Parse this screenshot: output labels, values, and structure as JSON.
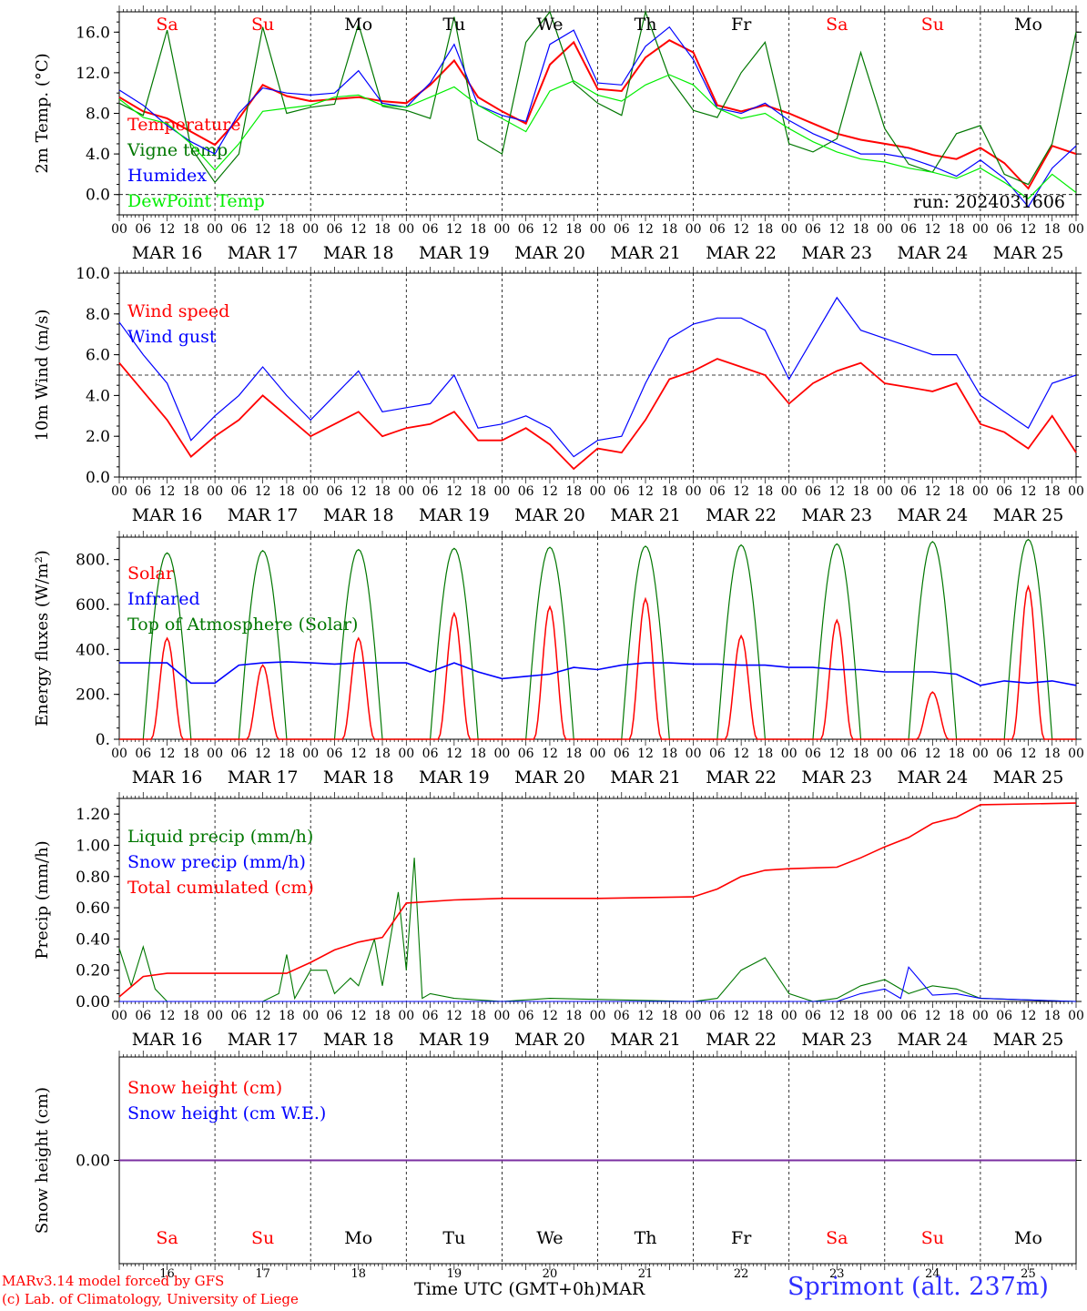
{
  "footer": {
    "credit_line1": "MARv3.14 model forced by GFS",
    "credit_line2": "(c) Lab. of Climatology, University of Liege",
    "x_axis_title": "Time UTC (GMT+0h)MAR",
    "station": "Sprimont (alt. 237m)"
  },
  "run_label": "run: 2024031606",
  "hour_ticks": [
    "00",
    "06",
    "12",
    "18"
  ],
  "day_labels": [
    "MAR 16",
    "MAR 17",
    "MAR 18",
    "MAR 19",
    "MAR 20",
    "MAR 21",
    "MAR 22",
    "MAR 23",
    "MAR 24",
    "MAR 25"
  ],
  "weekdays": [
    "Sa",
    "Su",
    "Mo",
    "Tu",
    "We",
    "Th",
    "Fr",
    "Sa",
    "Su",
    "Mo"
  ],
  "day_numbers": [
    "16",
    "17",
    "18",
    "19",
    "20",
    "21",
    "22",
    "23",
    "24",
    "25"
  ],
  "weekend_color": "#ff0000",
  "weekday_color": "#000000",
  "chart_data": [
    {
      "type": "line",
      "ylabel": "2m Temp. (°C)",
      "xlabel": "",
      "ylim": [
        -2,
        18
      ],
      "yticks": [
        "0.0",
        "4.0",
        "8.0",
        "12.0",
        "16.0"
      ],
      "ytick_values": [
        0,
        4,
        8,
        12,
        16
      ],
      "ref_line": 0,
      "x_hours": [
        0,
        6,
        12,
        18,
        24,
        30,
        36,
        42,
        48,
        54,
        60,
        66,
        72,
        78,
        84,
        90,
        96,
        102,
        108,
        114,
        120,
        126,
        132,
        138,
        144,
        150,
        156,
        162,
        168,
        174,
        180,
        186,
        192,
        198,
        204,
        210,
        216,
        222,
        228,
        234,
        240
      ],
      "series": [
        {
          "name": "Temperature",
          "color": "#ff0000",
          "values": [
            9.6,
            8.2,
            7.5,
            6.2,
            4.9,
            7.5,
            10.8,
            9.7,
            9.2,
            9.4,
            9.6,
            9.2,
            9.0,
            10.8,
            13.2,
            9.6,
            8.2,
            7.0,
            12.8,
            15.0,
            10.4,
            10.2,
            13.5,
            15.2,
            14.0,
            8.8,
            8.2,
            8.8,
            8.0,
            7.0,
            6.0,
            5.4,
            5.0,
            4.6,
            3.9,
            3.5,
            4.6,
            3.1,
            0.6,
            4.8,
            4.0
          ]
        },
        {
          "name": "Vigne temp",
          "color": "#007700",
          "values": [
            9.0,
            7.8,
            16.2,
            4.6,
            1.2,
            4.0,
            16.5,
            8.0,
            8.6,
            8.9,
            16.8,
            8.7,
            8.3,
            7.5,
            17.5,
            5.4,
            4.0,
            15.0,
            18.0,
            11.0,
            9.0,
            7.8,
            18.0,
            11.5,
            8.3,
            7.6,
            12.0,
            15.0,
            5.0,
            4.2,
            5.5,
            14.0,
            6.5,
            3.0,
            2.2,
            6.0,
            6.8,
            2.0,
            1.0,
            5.0,
            16.0
          ]
        },
        {
          "name": "Humidex",
          "color": "#0000ff",
          "values": [
            10.3,
            8.8,
            6.8,
            5.2,
            4.0,
            8.0,
            10.5,
            10.0,
            9.8,
            10.0,
            12.2,
            9.0,
            8.6,
            11.0,
            14.8,
            8.8,
            7.8,
            7.2,
            14.8,
            16.2,
            11.0,
            10.8,
            14.6,
            16.5,
            13.3,
            8.5,
            8.0,
            9.0,
            7.3,
            6.0,
            5.0,
            4.0,
            4.0,
            3.6,
            2.8,
            1.8,
            3.4,
            1.6,
            -1.2,
            2.6,
            4.8
          ]
        },
        {
          "name": "DewPoint Temp",
          "color": "#00ee00",
          "values": [
            9.4,
            7.6,
            7.0,
            5.0,
            2.4,
            5.0,
            8.2,
            8.5,
            8.8,
            9.6,
            9.8,
            8.8,
            8.6,
            9.6,
            10.6,
            8.8,
            7.5,
            6.2,
            10.2,
            11.2,
            9.8,
            9.2,
            10.8,
            11.8,
            10.8,
            8.5,
            7.5,
            8.0,
            6.5,
            5.2,
            4.2,
            3.5,
            3.2,
            2.6,
            2.2,
            1.6,
            2.6,
            1.2,
            -0.4,
            2.0,
            0.2
          ]
        }
      ]
    },
    {
      "type": "line",
      "ylabel": "10m Wind (m/s)",
      "xlabel": "",
      "ylim": [
        0,
        10
      ],
      "yticks": [
        "0.0",
        "2.0",
        "4.0",
        "6.0",
        "8.0",
        "10.0"
      ],
      "ytick_values": [
        0,
        2,
        4,
        6,
        8,
        10
      ],
      "ref_line": 5,
      "x_hours": [
        0,
        6,
        12,
        18,
        24,
        30,
        36,
        42,
        48,
        54,
        60,
        66,
        72,
        78,
        84,
        90,
        96,
        102,
        108,
        114,
        120,
        126,
        132,
        138,
        144,
        150,
        156,
        162,
        168,
        174,
        180,
        186,
        192,
        198,
        204,
        210,
        216,
        222,
        228,
        234,
        240
      ],
      "series": [
        {
          "name": "Wind speed",
          "color": "#ff0000",
          "values": [
            5.6,
            4.2,
            2.8,
            1.0,
            2.0,
            2.8,
            4.0,
            3.0,
            2.0,
            2.6,
            3.2,
            2.0,
            2.4,
            2.6,
            3.2,
            1.8,
            1.8,
            2.4,
            1.6,
            0.4,
            1.4,
            1.2,
            2.8,
            4.8,
            5.2,
            5.8,
            5.4,
            5.0,
            3.6,
            4.6,
            5.2,
            5.6,
            4.6,
            4.4,
            4.2,
            4.6,
            2.6,
            2.2,
            1.4,
            3.0,
            1.2
          ]
        },
        {
          "name": "Wind gust",
          "color": "#0000ff",
          "values": [
            7.6,
            6.0,
            4.6,
            1.8,
            3.0,
            4.0,
            5.4,
            4.0,
            2.8,
            4.0,
            5.2,
            3.2,
            3.4,
            3.6,
            5.0,
            2.4,
            2.6,
            3.0,
            2.4,
            1.0,
            1.8,
            2.0,
            4.6,
            6.8,
            7.5,
            7.8,
            7.8,
            7.2,
            4.8,
            6.8,
            8.8,
            7.2,
            6.8,
            6.4,
            6.0,
            6.0,
            4.0,
            3.2,
            2.4,
            4.6,
            5.0
          ]
        }
      ]
    },
    {
      "type": "line",
      "ylabel": "Energy fluxes (W/m²)",
      "xlabel": "",
      "ylim": [
        0,
        900
      ],
      "yticks": [
        "0.",
        "200.",
        "400.",
        "600.",
        "800."
      ],
      "ytick_values": [
        0,
        200,
        400,
        600,
        800
      ],
      "daily_peak_hour": 12,
      "series": [
        {
          "name": "Solar",
          "color": "#ff0000",
          "daily_peaks": [
            450,
            330,
            450,
            560,
            590,
            625,
            460,
            530,
            210,
            680
          ]
        },
        {
          "name": "Infrared",
          "color": "#0000ff",
          "values": [
            340,
            340,
            340,
            250,
            250,
            330,
            340,
            345,
            340,
            335,
            340,
            340,
            340,
            300,
            340,
            300,
            270,
            280,
            290,
            320,
            310,
            330,
            340,
            340,
            335,
            335,
            330,
            330,
            320,
            320,
            310,
            310,
            300,
            300,
            300,
            290,
            240,
            260,
            250,
            260,
            240
          ]
        },
        {
          "name": "Top of Atmosphere (Solar)",
          "color": "#007700",
          "daily_peaks": [
            830,
            840,
            845,
            850,
            855,
            860,
            865,
            870,
            880,
            890
          ]
        }
      ]
    },
    {
      "type": "line",
      "ylabel": "Precip (mm/h)",
      "xlabel": "",
      "ylim": [
        0,
        1.3
      ],
      "yticks": [
        "0.00",
        "0.20",
        "0.40",
        "0.60",
        "0.80",
        "1.00",
        "1.20"
      ],
      "ytick_values": [
        0,
        0.2,
        0.4,
        0.6,
        0.8,
        1.0,
        1.2
      ],
      "series": [
        {
          "name": "Liquid precip (mm/h)",
          "color": "#007700",
          "x": [
            0,
            3,
            6,
            9,
            12,
            18,
            24,
            30,
            36,
            40,
            42,
            44,
            48,
            52,
            54,
            58,
            60,
            64,
            66,
            70,
            72,
            74,
            76,
            78,
            84,
            96,
            108,
            144,
            150,
            156,
            162,
            168,
            174,
            180,
            186,
            192,
            198,
            204,
            210,
            216,
            240
          ],
          "values": [
            0.34,
            0.1,
            0.35,
            0.08,
            0.0,
            0.0,
            0.0,
            0.0,
            0.0,
            0.05,
            0.3,
            0.02,
            0.2,
            0.2,
            0.05,
            0.15,
            0.1,
            0.4,
            0.1,
            0.7,
            0.2,
            0.92,
            0.02,
            0.05,
            0.02,
            0.0,
            0.02,
            0.0,
            0.02,
            0.2,
            0.28,
            0.05,
            0.0,
            0.02,
            0.1,
            0.14,
            0.05,
            0.1,
            0.08,
            0.02,
            0.0
          ]
        },
        {
          "name": "Snow precip (mm/h)",
          "color": "#0000ff",
          "x": [
            0,
            180,
            186,
            192,
            196,
            198,
            204,
            210,
            216,
            240
          ],
          "values": [
            0,
            0,
            0.05,
            0.08,
            0.02,
            0.22,
            0.04,
            0.05,
            0.02,
            0
          ]
        },
        {
          "name": "Total cumulated (cm)",
          "color": "#ff0000",
          "x": [
            0,
            6,
            12,
            24,
            42,
            48,
            54,
            60,
            66,
            72,
            84,
            96,
            120,
            144,
            150,
            156,
            162,
            168,
            180,
            186,
            192,
            198,
            204,
            210,
            216,
            240
          ],
          "values": [
            0.03,
            0.16,
            0.18,
            0.18,
            0.18,
            0.25,
            0.33,
            0.38,
            0.41,
            0.63,
            0.65,
            0.66,
            0.66,
            0.67,
            0.72,
            0.8,
            0.84,
            0.85,
            0.86,
            0.92,
            0.99,
            1.05,
            1.14,
            1.18,
            1.26,
            1.27
          ]
        }
      ]
    },
    {
      "type": "line",
      "ylabel": "Snow height (cm)",
      "xlabel": "",
      "yticks": [
        "0.00"
      ],
      "ytick_values": [
        0
      ],
      "series": [
        {
          "name": "Snow height (cm)",
          "color": "#ff0000",
          "values": [
            0.0,
            0.0
          ]
        },
        {
          "name": "Snow height (cm W.E.)",
          "color": "#0000ff",
          "values": [
            0.0,
            0.0
          ]
        }
      ]
    }
  ]
}
